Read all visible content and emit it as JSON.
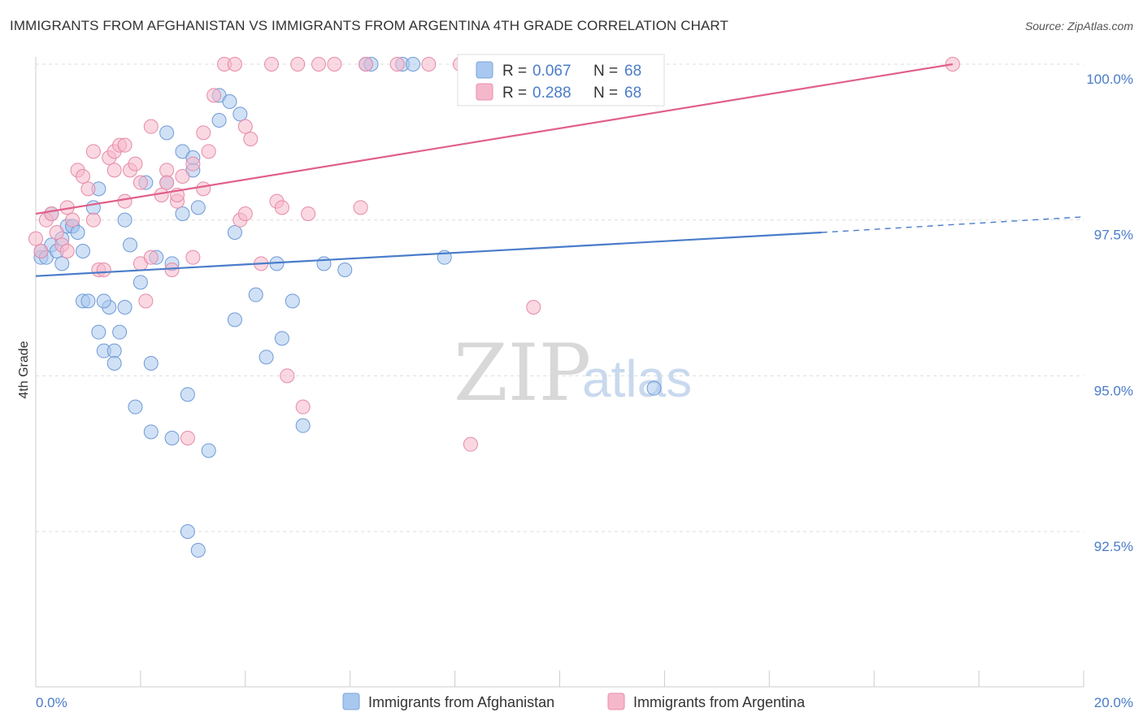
{
  "title": "IMMIGRANTS FROM AFGHANISTAN VS IMMIGRANTS FROM ARGENTINA 4TH GRADE CORRELATION CHART",
  "source": "Source: ZipAtlas.com",
  "watermark": {
    "zip": "ZIP",
    "atlas": "atlas"
  },
  "colors": {
    "blue": "#4a7cc9",
    "blue_fill": "#a9c8ef",
    "pink": "#e0608a",
    "pink_fill": "#f5b8cb",
    "grid": "#dddddd"
  },
  "legend": {
    "r_label": "R =",
    "n_label": "N =",
    "rows": [
      {
        "r": "0.067",
        "n": "68"
      },
      {
        "r": "0.288",
        "n": "68"
      }
    ]
  },
  "chart_data": {
    "type": "scatter",
    "title": "IMMIGRANTS FROM AFGHANISTAN VS IMMIGRANTS FROM ARGENTINA 4TH GRADE CORRELATION CHART",
    "xlabel": "",
    "ylabel": "4th Grade",
    "xlim": [
      0,
      20
    ],
    "ylim": [
      90.2,
      100.2
    ],
    "x_tick_labels": [
      "0.0%",
      "20.0%"
    ],
    "y_ticks": [
      92.5,
      95.0,
      97.5,
      100.0
    ],
    "y_tick_labels": [
      "92.5%",
      "95.0%",
      "97.5%",
      "100.0%"
    ],
    "grid": true,
    "legend_position": "top-center",
    "series": [
      {
        "name": "Immigrants from Afghanistan",
        "color": "#4a7cc9",
        "r": 0.067,
        "n": 68,
        "trend": {
          "x": [
            0,
            15
          ],
          "y": [
            96.6,
            97.3
          ],
          "dashed_to": [
            20,
            97.55
          ]
        },
        "points": [
          [
            0.1,
            96.9
          ],
          [
            0.1,
            97.0
          ],
          [
            0.2,
            96.9
          ],
          [
            0.3,
            97.6
          ],
          [
            0.3,
            97.1
          ],
          [
            0.4,
            97.0
          ],
          [
            0.5,
            96.8
          ],
          [
            0.5,
            97.2
          ],
          [
            0.6,
            97.4
          ],
          [
            0.7,
            97.4
          ],
          [
            0.7,
            97.4
          ],
          [
            0.8,
            97.3
          ],
          [
            0.9,
            97.0
          ],
          [
            1.1,
            97.7
          ],
          [
            1.2,
            98.0
          ],
          [
            0.9,
            96.2
          ],
          [
            1.0,
            96.2
          ],
          [
            1.2,
            95.7
          ],
          [
            1.3,
            95.4
          ],
          [
            1.4,
            96.1
          ],
          [
            1.3,
            96.2
          ],
          [
            1.5,
            95.4
          ],
          [
            1.5,
            95.2
          ],
          [
            1.6,
            95.7
          ],
          [
            1.7,
            96.1
          ],
          [
            1.7,
            97.5
          ],
          [
            1.8,
            97.1
          ],
          [
            2.0,
            96.5
          ],
          [
            1.9,
            94.5
          ],
          [
            2.1,
            98.1
          ],
          [
            2.2,
            95.2
          ],
          [
            2.2,
            94.1
          ],
          [
            2.3,
            96.9
          ],
          [
            2.5,
            98.9
          ],
          [
            2.5,
            98.1
          ],
          [
            2.6,
            96.8
          ],
          [
            2.6,
            94.0
          ],
          [
            2.8,
            97.6
          ],
          [
            2.8,
            98.6
          ],
          [
            2.9,
            94.7
          ],
          [
            2.9,
            92.5
          ],
          [
            3.0,
            98.3
          ],
          [
            3.0,
            98.5
          ],
          [
            3.1,
            97.7
          ],
          [
            3.1,
            92.2
          ],
          [
            3.3,
            93.8
          ],
          [
            3.5,
            99.5
          ],
          [
            3.5,
            99.1
          ],
          [
            3.7,
            99.4
          ],
          [
            3.8,
            97.3
          ],
          [
            3.8,
            95.9
          ],
          [
            3.9,
            99.2
          ],
          [
            4.2,
            96.3
          ],
          [
            4.4,
            95.3
          ],
          [
            4.6,
            96.8
          ],
          [
            4.7,
            95.6
          ],
          [
            4.9,
            96.2
          ],
          [
            5.1,
            94.2
          ],
          [
            5.5,
            96.8
          ],
          [
            5.9,
            96.7
          ],
          [
            6.3,
            100.0
          ],
          [
            6.4,
            100.0
          ],
          [
            7.0,
            100.0
          ],
          [
            7.2,
            100.0
          ],
          [
            7.8,
            96.9
          ],
          [
            8.3,
            100.0
          ],
          [
            10.9,
            100.0
          ],
          [
            11.8,
            94.8
          ]
        ]
      },
      {
        "name": "Immigrants from Argentina",
        "color": "#e0608a",
        "r": 0.288,
        "n": 68,
        "trend": {
          "x": [
            0,
            17.5
          ],
          "y": [
            97.6,
            100.0
          ]
        },
        "points": [
          [
            0.0,
            97.2
          ],
          [
            0.1,
            97.0
          ],
          [
            0.2,
            97.5
          ],
          [
            0.3,
            97.6
          ],
          [
            0.4,
            97.3
          ],
          [
            0.5,
            97.1
          ],
          [
            0.6,
            97.7
          ],
          [
            0.7,
            97.5
          ],
          [
            0.6,
            97.0
          ],
          [
            0.8,
            98.3
          ],
          [
            0.9,
            98.2
          ],
          [
            1.0,
            98.0
          ],
          [
            1.1,
            97.5
          ],
          [
            1.1,
            98.6
          ],
          [
            1.2,
            96.7
          ],
          [
            1.3,
            96.7
          ],
          [
            1.4,
            98.5
          ],
          [
            1.5,
            98.3
          ],
          [
            1.5,
            98.6
          ],
          [
            1.6,
            98.7
          ],
          [
            1.7,
            98.7
          ],
          [
            1.7,
            97.8
          ],
          [
            1.8,
            98.3
          ],
          [
            1.9,
            98.4
          ],
          [
            2.0,
            96.8
          ],
          [
            2.0,
            98.1
          ],
          [
            2.1,
            96.2
          ],
          [
            2.2,
            96.9
          ],
          [
            2.2,
            99.0
          ],
          [
            2.4,
            97.9
          ],
          [
            2.5,
            98.3
          ],
          [
            2.5,
            98.1
          ],
          [
            2.6,
            96.7
          ],
          [
            2.7,
            97.8
          ],
          [
            2.7,
            97.9
          ],
          [
            2.8,
            98.2
          ],
          [
            2.9,
            94.0
          ],
          [
            3.0,
            98.4
          ],
          [
            3.0,
            96.9
          ],
          [
            3.2,
            98.0
          ],
          [
            3.2,
            98.9
          ],
          [
            3.3,
            98.6
          ],
          [
            3.4,
            99.5
          ],
          [
            3.6,
            100.0
          ],
          [
            3.8,
            100.0
          ],
          [
            3.9,
            97.5
          ],
          [
            4.0,
            97.6
          ],
          [
            4.0,
            99.0
          ],
          [
            4.1,
            98.8
          ],
          [
            4.3,
            96.8
          ],
          [
            4.5,
            100.0
          ],
          [
            4.6,
            97.8
          ],
          [
            4.7,
            97.7
          ],
          [
            4.8,
            95.0
          ],
          [
            5.0,
            100.0
          ],
          [
            5.1,
            94.5
          ],
          [
            5.2,
            97.6
          ],
          [
            5.4,
            100.0
          ],
          [
            5.7,
            100.0
          ],
          [
            6.2,
            97.7
          ],
          [
            6.3,
            100.0
          ],
          [
            6.9,
            100.0
          ],
          [
            7.5,
            100.0
          ],
          [
            8.1,
            100.0
          ],
          [
            8.3,
            93.9
          ],
          [
            9.5,
            96.1
          ],
          [
            10.8,
            99.5
          ],
          [
            17.5,
            100.0
          ]
        ]
      }
    ]
  }
}
